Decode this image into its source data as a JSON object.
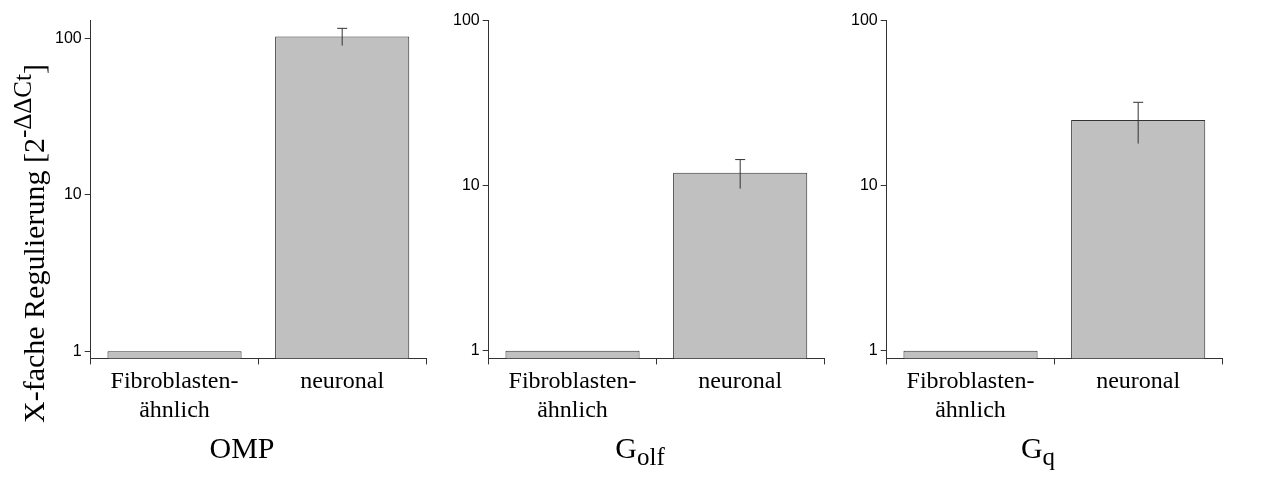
{
  "chart_data": [
    {
      "type": "bar",
      "categories": [
        "Fibroblasten-ähnlich",
        "neuronal"
      ],
      "values": [
        1,
        103
      ],
      "errors": [
        null,
        13
      ],
      "color": "#c0c0c0",
      "xlabel": "OMP",
      "ylabel": "X-fache Regulierung [2$^{-ΔΔCt}$]",
      "log": "y",
      "ylim": [
        0.9,
        130
      ],
      "yticks": [
        1,
        10,
        100
      ],
      "grid": false
    },
    {
      "type": "bar",
      "categories": [
        "Fibroblasten-ähnlich",
        "neuronal"
      ],
      "values": [
        1,
        12
      ],
      "errors": [
        null,
        2.4
      ],
      "color": "#c0c0c0",
      "xlabel": "G$_{olf}$",
      "log": "y",
      "ylim": [
        0.9,
        100
      ],
      "yticks": [
        1,
        10,
        100
      ],
      "grid": false
    },
    {
      "type": "bar",
      "categories": [
        "Fibroblasten-ähnlich",
        "neuronal"
      ],
      "values": [
        1,
        25
      ],
      "errors": [
        null,
        7
      ],
      "color": "#c0c0c0",
      "xlabel": "G$_{q}$",
      "log": "y",
      "ylim": [
        0.9,
        100
      ],
      "yticks": [
        1,
        10,
        100
      ],
      "grid": false
    }
  ]
}
